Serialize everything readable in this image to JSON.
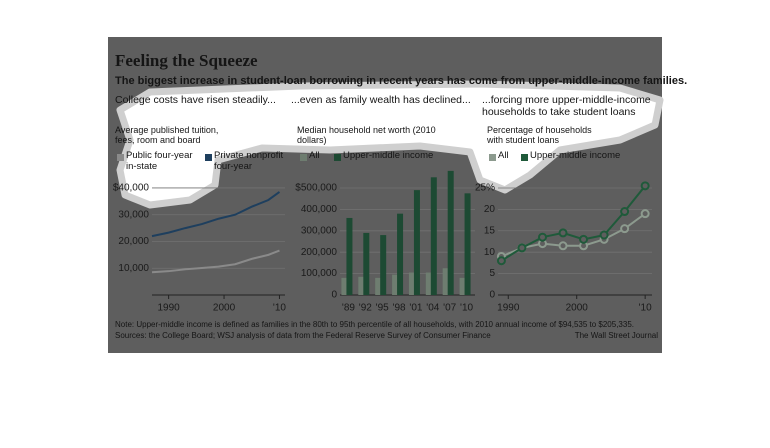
{
  "title": "Feeling the Squeeze",
  "subtitle": "The biggest increase in student-loan borrowing in recent years has come from upper-middle-income families.",
  "note": "Note: Upper-middle income is defined as families in the 80th to 95th percentile of all households, with 2010 annual income of $94,535 to $205,335.",
  "source": "Sources: the College Board; WSJ analysis of data from the Federal Reserve Survey of Consumer Finance",
  "credit": "The Wall Street Journal",
  "chart_data": [
    {
      "type": "line",
      "title": "College costs have risen steadily...",
      "ylabel": "Average published tuition, fees, room and board",
      "x": [
        1987,
        1990,
        1993,
        1996,
        1999,
        2002,
        2005,
        2008,
        2010
      ],
      "series": [
        {
          "name": "Public four-year in-state",
          "color": "#8a8a8a",
          "values": [
            8500,
            8900,
            9600,
            10100,
            10600,
            11500,
            13500,
            15000,
            16600
          ]
        },
        {
          "name": "Private nonprofit four-year",
          "color": "#1e3f5e",
          "values": [
            22000,
            23300,
            25000,
            26500,
            28500,
            30000,
            33000,
            35500,
            38500
          ]
        }
      ],
      "xlim": [
        1987,
        2011
      ],
      "xticks": [
        1990,
        2000,
        {
          "value": 2010,
          "label": "'10"
        }
      ],
      "ylim": [
        0,
        42000
      ],
      "yticks": [
        {
          "value": 10000,
          "label": "10,000"
        },
        {
          "value": 20000,
          "label": "20,000"
        },
        {
          "value": 30000,
          "label": "30,000"
        },
        {
          "value": 40000,
          "label": "$40,000"
        }
      ],
      "grid": true
    },
    {
      "type": "bar",
      "title": "...even as family wealth has declined...",
      "ylabel": "Median household net worth (2010 dollars)",
      "categories": [
        "'89",
        "'92",
        "'95",
        "'98",
        "'01",
        "'04",
        "'07",
        "'10"
      ],
      "series": [
        {
          "name": "All",
          "color": "#6e7d70",
          "values": [
            80000,
            85000,
            80000,
            95000,
            105000,
            105000,
            125000,
            80000
          ]
        },
        {
          "name": "Upper-middle income",
          "color": "#1d4a33",
          "values": [
            360000,
            290000,
            280000,
            380000,
            490000,
            550000,
            580000,
            475000
          ]
        }
      ],
      "ylim": [
        0,
        600000
      ],
      "yticks": [
        0,
        {
          "value": 100000,
          "label": "100,000"
        },
        {
          "value": 200000,
          "label": "200,000"
        },
        {
          "value": 300000,
          "label": "300,000"
        },
        {
          "value": 400000,
          "label": "400,000"
        },
        {
          "value": 500000,
          "label": "$500,000"
        }
      ],
      "grid": true
    },
    {
      "type": "line",
      "markers": true,
      "title": "...forcing more upper-middle-income households to take student loans",
      "ylabel": "Percentage of households with student loans",
      "x": [
        1989,
        1992,
        1995,
        1998,
        2001,
        2004,
        2007,
        2010
      ],
      "series": [
        {
          "name": "All",
          "color": "#8c9a8e",
          "values": [
            9,
            11,
            12,
            11.5,
            11.5,
            13,
            15.5,
            19
          ]
        },
        {
          "name": "Upper-middle income",
          "color": "#1f5a3a",
          "values": [
            8,
            11,
            13.5,
            14.5,
            13,
            14,
            19.5,
            25.5
          ]
        }
      ],
      "xlim": [
        1988.5,
        2011
      ],
      "xticks": [
        1990,
        2000,
        {
          "value": 2010,
          "label": "'10"
        }
      ],
      "ylim": [
        0,
        27
      ],
      "yticks": [
        0,
        5,
        10,
        15,
        20,
        {
          "value": 25,
          "label": "25%"
        }
      ],
      "grid": true
    }
  ]
}
